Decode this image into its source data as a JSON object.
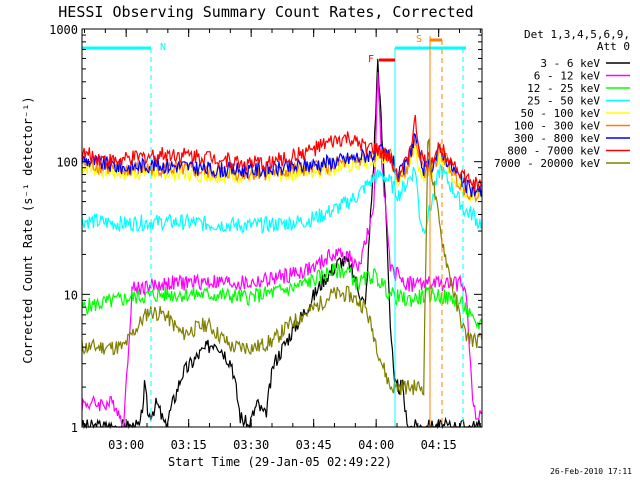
{
  "chart_data": {
    "type": "line",
    "title": "HESSI Observing Summary Count Rates, Corrected",
    "xlabel": "Start Time (29-Jan-05 02:49:22)",
    "ylabel": "Corrected Count Rate (s⁻¹ detector⁻¹)",
    "yscale": "log",
    "ylim": [
      1,
      1000
    ],
    "y_ticks": [
      {
        "value": 1,
        "label": "1"
      },
      {
        "value": 10,
        "label": "10"
      },
      {
        "value": 100,
        "label": "100"
      },
      {
        "value": 1000,
        "label": "1000"
      }
    ],
    "xlim_minutes": [
      0,
      96
    ],
    "x_ticks": [
      {
        "minute": 10.6,
        "label": "03:00"
      },
      {
        "minute": 25.6,
        "label": "03:15"
      },
      {
        "minute": 40.6,
        "label": "03:30"
      },
      {
        "minute": 55.6,
        "label": "03:45"
      },
      {
        "minute": 70.6,
        "label": "04:00"
      },
      {
        "minute": 85.6,
        "label": "04:15"
      }
    ],
    "legend_header": [
      "Det 1,3,4,5,6,9,",
      "Att 0"
    ],
    "legend_placement": "right",
    "series": [
      {
        "name": "3 - 6 keV",
        "color": "#000000",
        "points": [
          [
            0,
            1
          ],
          [
            14,
            1
          ],
          [
            15,
            2
          ],
          [
            16,
            1.2
          ],
          [
            18,
            1.5
          ],
          [
            20,
            1
          ],
          [
            24,
            2.5
          ],
          [
            28,
            3.5
          ],
          [
            32,
            4.5
          ],
          [
            36,
            3
          ],
          [
            38,
            1.2
          ],
          [
            40,
            1
          ],
          [
            42,
            1.5
          ],
          [
            44,
            1.2
          ],
          [
            46,
            3
          ],
          [
            50,
            5
          ],
          [
            54,
            8
          ],
          [
            58,
            13
          ],
          [
            62,
            18
          ],
          [
            64,
            17
          ],
          [
            66,
            12
          ],
          [
            68,
            8
          ],
          [
            70,
            100
          ],
          [
            71,
            600
          ],
          [
            72,
            150
          ],
          [
            73,
            40
          ],
          [
            74,
            6
          ],
          [
            75,
            2
          ],
          [
            77,
            2
          ],
          [
            78,
            1
          ],
          [
            96,
            1
          ]
        ]
      },
      {
        "name": "6 - 12 keV",
        "color": "#ff00ff",
        "points": [
          [
            0,
            1.5
          ],
          [
            8,
            1.5
          ],
          [
            10,
            1
          ],
          [
            12,
            11
          ],
          [
            20,
            12
          ],
          [
            30,
            12.5
          ],
          [
            40,
            12
          ],
          [
            50,
            14
          ],
          [
            56,
            16
          ],
          [
            60,
            20
          ],
          [
            64,
            20
          ],
          [
            66,
            15
          ],
          [
            70,
            40
          ],
          [
            71,
            500
          ],
          [
            72,
            100
          ],
          [
            74,
            15
          ],
          [
            76,
            14
          ],
          [
            78,
            12
          ],
          [
            92,
            12
          ],
          [
            94,
            1.3
          ],
          [
            96,
            1.3
          ]
        ]
      },
      {
        "name": "12 - 25 keV",
        "color": "#00ff00",
        "points": [
          [
            0,
            8
          ],
          [
            12,
            9.5
          ],
          [
            20,
            10
          ],
          [
            30,
            10
          ],
          [
            40,
            9.5
          ],
          [
            50,
            11
          ],
          [
            56,
            13
          ],
          [
            60,
            15
          ],
          [
            64,
            15
          ],
          [
            66,
            12
          ],
          [
            70,
            14
          ],
          [
            72,
            12
          ],
          [
            74,
            10
          ],
          [
            78,
            9
          ],
          [
            84,
            10
          ],
          [
            90,
            9
          ],
          [
            92,
            8
          ],
          [
            94,
            6
          ],
          [
            96,
            6
          ]
        ]
      },
      {
        "name": "25 - 50 keV",
        "color": "#00ffff",
        "points": [
          [
            0,
            36
          ],
          [
            10,
            34
          ],
          [
            16,
            35
          ],
          [
            24,
            35
          ],
          [
            30,
            34
          ],
          [
            40,
            33
          ],
          [
            48,
            34
          ],
          [
            54,
            36
          ],
          [
            58,
            40
          ],
          [
            62,
            46
          ],
          [
            66,
            55
          ],
          [
            68,
            65
          ],
          [
            70,
            75
          ],
          [
            72,
            80
          ],
          [
            74,
            70
          ],
          [
            76,
            56
          ],
          [
            78,
            70
          ],
          [
            80,
            90
          ],
          [
            81,
            40
          ],
          [
            82,
            30
          ],
          [
            84,
            50
          ],
          [
            86,
            90
          ],
          [
            88,
            70
          ],
          [
            90,
            55
          ],
          [
            92,
            42
          ],
          [
            94,
            40
          ],
          [
            95,
            35
          ],
          [
            96,
            35
          ]
        ]
      },
      {
        "name": "50 - 100 keV",
        "color": "#ffff00",
        "points": [
          [
            0,
            92
          ],
          [
            10,
            82
          ],
          [
            16,
            84
          ],
          [
            24,
            82
          ],
          [
            30,
            80
          ],
          [
            40,
            78
          ],
          [
            48,
            80
          ],
          [
            54,
            85
          ],
          [
            58,
            88
          ],
          [
            62,
            92
          ],
          [
            66,
            96
          ],
          [
            70,
            100
          ],
          [
            72,
            110
          ],
          [
            74,
            105
          ],
          [
            76,
            70
          ],
          [
            78,
            88
          ],
          [
            80,
            130
          ],
          [
            81,
            90
          ],
          [
            82,
            80
          ],
          [
            84,
            85
          ],
          [
            86,
            110
          ],
          [
            88,
            90
          ],
          [
            90,
            70
          ],
          [
            92,
            60
          ],
          [
            94,
            55
          ],
          [
            96,
            55
          ]
        ]
      },
      {
        "name": "100 - 300 keV",
        "color": "#ff7f00",
        "points": [
          [
            0,
            98
          ],
          [
            10,
            86
          ],
          [
            16,
            90
          ],
          [
            24,
            88
          ],
          [
            30,
            84
          ],
          [
            40,
            82
          ],
          [
            48,
            84
          ],
          [
            54,
            88
          ],
          [
            58,
            92
          ],
          [
            62,
            97
          ],
          [
            66,
            102
          ],
          [
            70,
            110
          ],
          [
            72,
            115
          ],
          [
            74,
            108
          ],
          [
            76,
            75
          ],
          [
            78,
            92
          ],
          [
            80,
            150
          ],
          [
            81,
            100
          ],
          [
            82,
            85
          ],
          [
            84,
            90
          ],
          [
            86,
            120
          ],
          [
            88,
            95
          ],
          [
            90,
            75
          ],
          [
            92,
            62
          ],
          [
            94,
            58
          ],
          [
            96,
            58
          ]
        ]
      },
      {
        "name": "300 - 800 keV",
        "color": "#0000ff",
        "points": [
          [
            0,
            104
          ],
          [
            10,
            90
          ],
          [
            16,
            95
          ],
          [
            24,
            93
          ],
          [
            30,
            88
          ],
          [
            40,
            86
          ],
          [
            48,
            89
          ],
          [
            54,
            94
          ],
          [
            58,
            98
          ],
          [
            62,
            102
          ],
          [
            66,
            108
          ],
          [
            70,
            115
          ],
          [
            72,
            118
          ],
          [
            74,
            110
          ],
          [
            76,
            78
          ],
          [
            78,
            96
          ],
          [
            80,
            160
          ],
          [
            81,
            105
          ],
          [
            82,
            88
          ],
          [
            84,
            95
          ],
          [
            86,
            125
          ],
          [
            88,
            100
          ],
          [
            90,
            80
          ],
          [
            92,
            65
          ],
          [
            94,
            60
          ],
          [
            96,
            60
          ]
        ]
      },
      {
        "name": "800 - 7000 keV",
        "color": "#ff0000",
        "points": [
          [
            0,
            115
          ],
          [
            8,
            100
          ],
          [
            14,
            108
          ],
          [
            20,
            115
          ],
          [
            26,
            112
          ],
          [
            32,
            108
          ],
          [
            38,
            98
          ],
          [
            44,
            96
          ],
          [
            50,
            108
          ],
          [
            56,
            125
          ],
          [
            60,
            140
          ],
          [
            64,
            150
          ],
          [
            66,
            135
          ],
          [
            70,
            125
          ],
          [
            72,
            115
          ],
          [
            74,
            105
          ],
          [
            76,
            80
          ],
          [
            78,
            100
          ],
          [
            80,
            200
          ],
          [
            81,
            120
          ],
          [
            82,
            100
          ],
          [
            84,
            105
          ],
          [
            86,
            130
          ],
          [
            88,
            110
          ],
          [
            90,
            90
          ],
          [
            92,
            75
          ],
          [
            94,
            68
          ],
          [
            96,
            65
          ]
        ]
      },
      {
        "name": "7000 - 20000 keV",
        "color": "#808000",
        "points": [
          [
            0,
            4
          ],
          [
            10,
            4
          ],
          [
            12,
            5
          ],
          [
            16,
            7.5
          ],
          [
            20,
            7
          ],
          [
            24,
            5
          ],
          [
            30,
            6
          ],
          [
            36,
            4
          ],
          [
            42,
            4
          ],
          [
            46,
            4.5
          ],
          [
            50,
            6
          ],
          [
            56,
            8
          ],
          [
            60,
            10
          ],
          [
            64,
            10
          ],
          [
            68,
            8
          ],
          [
            70,
            5
          ],
          [
            72,
            3
          ],
          [
            74,
            2
          ],
          [
            78,
            2
          ],
          [
            82,
            2
          ],
          [
            83,
            150
          ],
          [
            84,
            80
          ],
          [
            86,
            30
          ],
          [
            88,
            15
          ],
          [
            90,
            8
          ],
          [
            92,
            5
          ],
          [
            94,
            4.5
          ],
          [
            96,
            4.5
          ]
        ]
      }
    ],
    "annotations": [
      {
        "label": "N",
        "color": "#00ffff"
      },
      {
        "label": "F",
        "color": "#ff0000"
      },
      {
        "label": "S",
        "color": "#ff7f00"
      }
    ],
    "footer_timestamp": "26-Feb-2010 17:11"
  }
}
